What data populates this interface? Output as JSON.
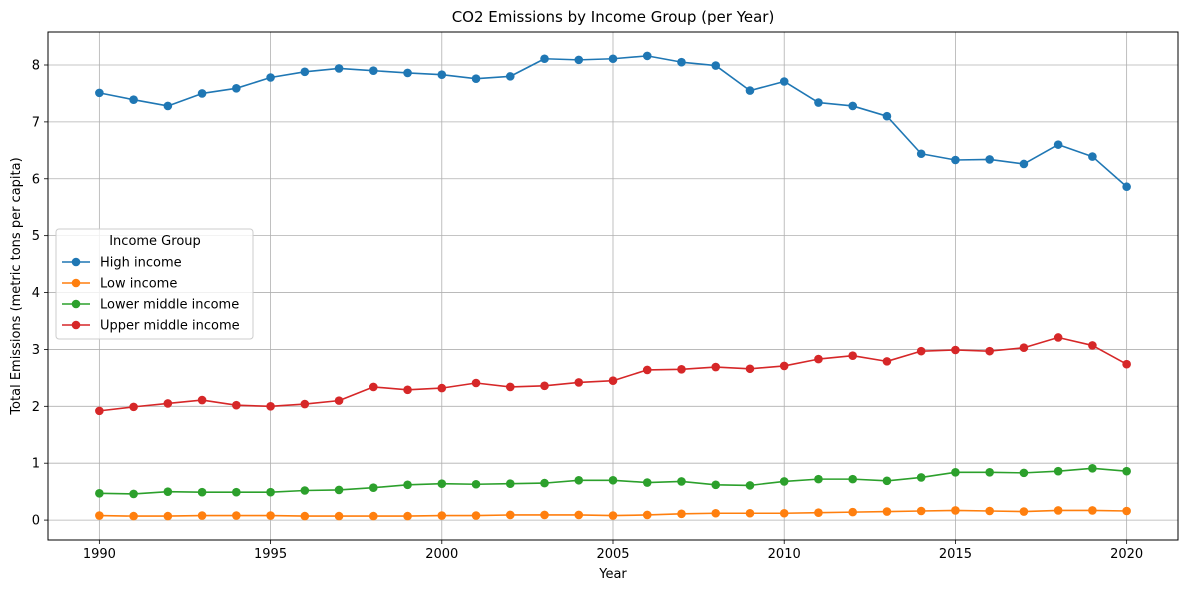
{
  "chart_data": {
    "type": "line",
    "title": "CO2 Emissions by Income Group (per Year)",
    "xlabel": "Year",
    "ylabel": "Total Emissions (metric tons per capita)",
    "xlim": [
      1988.5,
      2021.5
    ],
    "ylim": [
      -0.35,
      8.58
    ],
    "xticks": [
      1990,
      1995,
      2000,
      2005,
      2010,
      2015,
      2020
    ],
    "yticks": [
      0,
      1,
      2,
      3,
      4,
      5,
      6,
      7,
      8
    ],
    "grid": true,
    "legend": {
      "title": "Income Group",
      "placement": "center-left"
    },
    "x": [
      1990,
      1991,
      1992,
      1993,
      1994,
      1995,
      1996,
      1997,
      1998,
      1999,
      2000,
      2001,
      2002,
      2003,
      2004,
      2005,
      2006,
      2007,
      2008,
      2009,
      2010,
      2011,
      2012,
      2013,
      2014,
      2015,
      2016,
      2017,
      2018,
      2019,
      2020
    ],
    "series": [
      {
        "name": "High income",
        "color": "#1f77b4",
        "values": [
          7.51,
          7.39,
          7.28,
          7.5,
          7.59,
          7.78,
          7.88,
          7.94,
          7.9,
          7.86,
          7.83,
          7.76,
          7.8,
          8.11,
          8.09,
          8.11,
          8.16,
          8.05,
          7.99,
          7.55,
          7.71,
          7.34,
          7.28,
          7.1,
          6.44,
          6.33,
          6.34,
          6.26,
          6.6,
          6.39,
          5.86
        ]
      },
      {
        "name": "Low income",
        "color": "#ff7f0e",
        "values": [
          0.08,
          0.07,
          0.07,
          0.08,
          0.08,
          0.08,
          0.07,
          0.07,
          0.07,
          0.07,
          0.08,
          0.08,
          0.09,
          0.09,
          0.09,
          0.08,
          0.09,
          0.11,
          0.12,
          0.12,
          0.12,
          0.13,
          0.14,
          0.15,
          0.16,
          0.17,
          0.16,
          0.15,
          0.17,
          0.17,
          0.16
        ]
      },
      {
        "name": "Lower middle income",
        "color": "#2ca02c",
        "values": [
          0.47,
          0.46,
          0.5,
          0.49,
          0.49,
          0.49,
          0.52,
          0.53,
          0.57,
          0.62,
          0.64,
          0.63,
          0.64,
          0.65,
          0.7,
          0.7,
          0.66,
          0.68,
          0.62,
          0.61,
          0.68,
          0.72,
          0.72,
          0.69,
          0.75,
          0.84,
          0.84,
          0.83,
          0.86,
          0.91,
          0.86
        ]
      },
      {
        "name": "Upper middle income",
        "color": "#d62728",
        "values": [
          1.92,
          1.99,
          2.05,
          2.11,
          2.02,
          2.0,
          2.04,
          2.1,
          2.34,
          2.29,
          2.32,
          2.41,
          2.34,
          2.36,
          2.42,
          2.45,
          2.64,
          2.65,
          2.69,
          2.66,
          2.71,
          2.83,
          2.89,
          2.79,
          2.97,
          2.99,
          2.97,
          3.03,
          3.21,
          3.07,
          2.74
        ]
      }
    ]
  }
}
